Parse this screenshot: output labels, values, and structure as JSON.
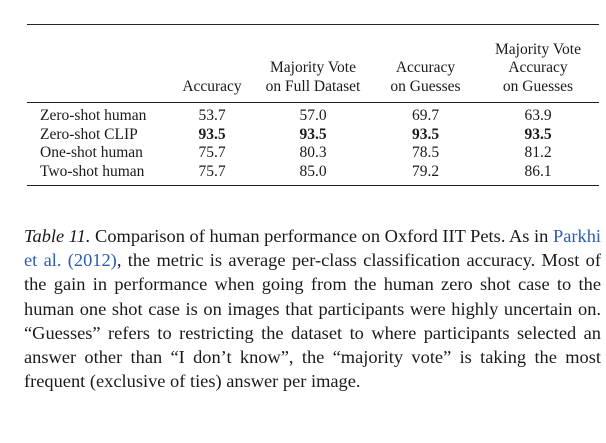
{
  "table": {
    "columns": [
      "",
      [
        "Accuracy"
      ],
      [
        "Majority Vote",
        "on Full Dataset"
      ],
      [
        "Accuracy",
        "on Guesses"
      ],
      [
        "Majority Vote",
        "Accuracy",
        "on Guesses"
      ]
    ],
    "rows": [
      {
        "label": "Zero-shot human",
        "values": [
          "53.7",
          "57.0",
          "69.7",
          "63.9"
        ],
        "bold": [
          false,
          false,
          false,
          false
        ]
      },
      {
        "label": "Zero-shot CLIP",
        "values": [
          "93.5",
          "93.5",
          "93.5",
          "93.5"
        ],
        "bold": [
          true,
          true,
          true,
          true
        ]
      },
      {
        "label": "One-shot human",
        "values": [
          "75.7",
          "80.3",
          "78.5",
          "81.2"
        ],
        "bold": [
          false,
          false,
          false,
          false
        ]
      },
      {
        "label": "Two-shot human",
        "values": [
          "75.7",
          "85.0",
          "79.2",
          "86.1"
        ],
        "bold": [
          false,
          false,
          false,
          false
        ]
      }
    ]
  },
  "caption": {
    "label": "Table 11.",
    "text_before_cite": " Comparison of human performance on Oxford IIT Pets. As in ",
    "cite": "Parkhi et al. (2012)",
    "text_after_cite": ", the metric is average per-class classification accuracy. Most of the gain in performance when going from the human zero shot case to the human one shot case is on images that participants were highly uncertain on. “Guesses” refers to restricting the dataset to where participants selected an answer other than “I don’t know”, the “majority vote” is taking the most frequent (exclusive of ties) answer per image."
  }
}
